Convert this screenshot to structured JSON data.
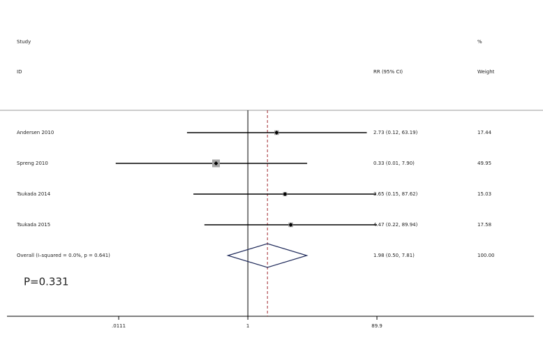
{
  "chart_data": {
    "type": "forest",
    "column_headers": {
      "study": "Study",
      "id": "ID",
      "ci": "RR (95% CI)",
      "weight_pct": "%",
      "weight": "Weight"
    },
    "studies": [
      "Andersen 2010",
      "Spreng 2010",
      "Tsukada 2014",
      "Tsukada 2015",
      "Overall (I–squared = 0.0%, p = 0.641)"
    ],
    "rr": [
      2.73,
      0.33,
      3.65,
      4.47,
      1.98
    ],
    "lower": [
      0.12,
      0.01,
      0.15,
      0.22,
      0.5
    ],
    "upper": [
      63.19,
      7.9,
      87.62,
      89.94,
      7.81
    ],
    "ci_labels": [
      "2.73 (0.12, 63.19)",
      "0.33 (0.01, 7.90)",
      "3.65 (0.15, 87.62)",
      "4.47 (0.22, 89.94)",
      "1.98 (0.50, 7.81)"
    ],
    "weights": [
      17.44,
      49.95,
      15.03,
      17.58,
      100
    ],
    "weight_labels": [
      "17.44",
      "49.95",
      "15.03",
      "17.58",
      "100.00"
    ],
    "annotation": "P=0.331",
    "log_scale": true,
    "xlim": [
      0.000226,
      21400
    ],
    "xticks": [
      {
        "value": 0.0111,
        "label": ".0111"
      },
      1,
      89.9
    ],
    "reference_line": 1,
    "colors": {
      "box": "#a6a6a6",
      "line": "#000000",
      "diamond": "#1f2a5a",
      "overall_line": "#a0262c"
    }
  }
}
